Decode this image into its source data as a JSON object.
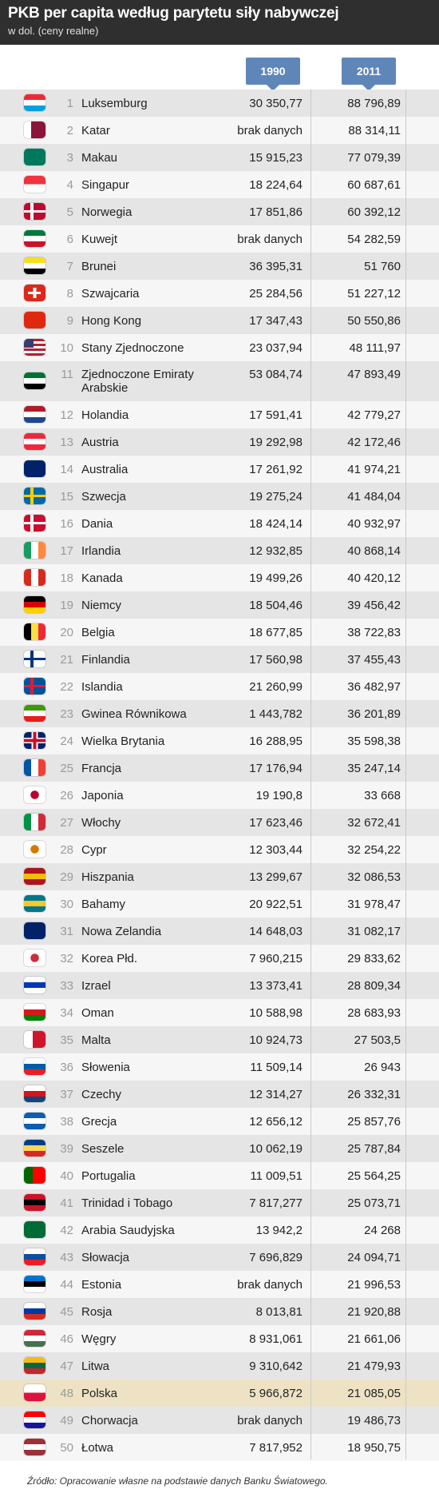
{
  "header": {
    "title": "PKB per capita według parytetu siły nabywczej",
    "subtitle": "w dol. (ceny realne)"
  },
  "columns": {
    "y1990": "1990",
    "y2011": "2011"
  },
  "rows": [
    {
      "rank": "1",
      "country": "Luksemburg",
      "v1990": "30 350,77",
      "v2011": "88 796,89",
      "flag": [
        "#ed2939",
        "#ffffff",
        "#00a1de"
      ],
      "dir": "h"
    },
    {
      "rank": "2",
      "country": "Katar",
      "v1990": "brak danych",
      "v2011": "88 314,11",
      "flag": [
        "#ffffff",
        "#8a1538",
        "#8a1538"
      ],
      "dir": "v"
    },
    {
      "rank": "3",
      "country": "Makau",
      "v1990": "15 915,23",
      "v2011": "77 079,39",
      "flag": [
        "#00785e",
        "#00785e",
        "#00785e"
      ],
      "dir": "h"
    },
    {
      "rank": "4",
      "country": "Singapur",
      "v1990": "18 224,64",
      "v2011": "60 687,61",
      "flag": [
        "#ef3340",
        "#ffffff",
        "#ffffff"
      ],
      "dir": "h2"
    },
    {
      "rank": "5",
      "country": "Norwegia",
      "v1990": "17 851,86",
      "v2011": "60 392,12",
      "flag": [
        "#ba0c2f",
        "#ffffff",
        "#00205b"
      ],
      "dir": "cross"
    },
    {
      "rank": "6",
      "country": "Kuwejt",
      "v1990": "brak danych",
      "v2011": "54 282,59",
      "flag": [
        "#007a3d",
        "#ffffff",
        "#ce1126"
      ],
      "dir": "h"
    },
    {
      "rank": "7",
      "country": "Brunei",
      "v1990": "36 395,31",
      "v2011": "51 760",
      "flag": [
        "#f7e017",
        "#ffffff",
        "#000000"
      ],
      "dir": "h"
    },
    {
      "rank": "8",
      "country": "Szwajcaria",
      "v1990": "25 284,56",
      "v2011": "51 227,12",
      "flag": [
        "#da291c",
        "#da291c",
        "#ffffff"
      ],
      "dir": "swiss"
    },
    {
      "rank": "9",
      "country": "Hong Kong",
      "v1990": "17 347,43",
      "v2011": "50 550,86",
      "flag": [
        "#de2910",
        "#de2910",
        "#de2910"
      ],
      "dir": "h"
    },
    {
      "rank": "10",
      "country": "Stany Zjednoczone",
      "v1990": "23 037,94",
      "v2011": "48 111,97",
      "flag": [
        "#b22234",
        "#ffffff",
        "#3c3b6e"
      ],
      "dir": "us"
    },
    {
      "rank": "11",
      "country": "Zjednoczone Emiraty Arabskie",
      "v1990": "53 084,74",
      "v2011": "47 893,49",
      "flag": [
        "#00732f",
        "#ffffff",
        "#000000"
      ],
      "dir": "h",
      "tall": true
    },
    {
      "rank": "12",
      "country": "Holandia",
      "v1990": "17 591,41",
      "v2011": "42 779,27",
      "flag": [
        "#ae1c28",
        "#ffffff",
        "#21468b"
      ],
      "dir": "h"
    },
    {
      "rank": "13",
      "country": "Austria",
      "v1990": "19 292,98",
      "v2011": "42 172,46",
      "flag": [
        "#ed2939",
        "#ffffff",
        "#ed2939"
      ],
      "dir": "h"
    },
    {
      "rank": "14",
      "country": "Australia",
      "v1990": "17 261,92",
      "v2011": "41 974,21",
      "flag": [
        "#012169",
        "#012169",
        "#012169"
      ],
      "dir": "h"
    },
    {
      "rank": "15",
      "country": "Szwecja",
      "v1990": "19 275,24",
      "v2011": "41 484,04",
      "flag": [
        "#006aa7",
        "#fecc00",
        "#006aa7"
      ],
      "dir": "cross"
    },
    {
      "rank": "16",
      "country": "Dania",
      "v1990": "18 424,14",
      "v2011": "40 932,97",
      "flag": [
        "#c8102e",
        "#ffffff",
        "#c8102e"
      ],
      "dir": "cross"
    },
    {
      "rank": "17",
      "country": "Irlandia",
      "v1990": "12 932,85",
      "v2011": "40 868,14",
      "flag": [
        "#169b62",
        "#ffffff",
        "#ff883e"
      ],
      "dir": "v"
    },
    {
      "rank": "18",
      "country": "Kanada",
      "v1990": "19 499,26",
      "v2011": "40 420,12",
      "flag": [
        "#d52b1e",
        "#ffffff",
        "#d52b1e"
      ],
      "dir": "v"
    },
    {
      "rank": "19",
      "country": "Niemcy",
      "v1990": "18 504,46",
      "v2011": "39 456,42",
      "flag": [
        "#000000",
        "#dd0000",
        "#ffce00"
      ],
      "dir": "h"
    },
    {
      "rank": "20",
      "country": "Belgia",
      "v1990": "18 677,85",
      "v2011": "38 722,83",
      "flag": [
        "#000000",
        "#fae042",
        "#ed2939"
      ],
      "dir": "v"
    },
    {
      "rank": "21",
      "country": "Finlandia",
      "v1990": "17 560,98",
      "v2011": "37 455,43",
      "flag": [
        "#ffffff",
        "#003580",
        "#ffffff"
      ],
      "dir": "cross"
    },
    {
      "rank": "22",
      "country": "Islandia",
      "v1990": "21 260,99",
      "v2011": "36 482,97",
      "flag": [
        "#02529c",
        "#dc1e35",
        "#02529c"
      ],
      "dir": "cross"
    },
    {
      "rank": "23",
      "country": "Gwinea Równikowa",
      "v1990": "1 443,782",
      "v2011": "36 201,89",
      "flag": [
        "#3e9a00",
        "#ffffff",
        "#e32118"
      ],
      "dir": "h"
    },
    {
      "rank": "24",
      "country": "Wielka Brytania",
      "v1990": "16 288,95",
      "v2011": "35 598,38",
      "flag": [
        "#012169",
        "#c8102e",
        "#ffffff"
      ],
      "dir": "uk"
    },
    {
      "rank": "25",
      "country": "Francja",
      "v1990": "17 176,94",
      "v2011": "35 247,14",
      "flag": [
        "#0055a4",
        "#ffffff",
        "#ef4135"
      ],
      "dir": "v"
    },
    {
      "rank": "26",
      "country": "Japonia",
      "v1990": "19 190,8",
      "v2011": "33 668",
      "flag": [
        "#ffffff",
        "#bc002d",
        "#ffffff"
      ],
      "dir": "jp"
    },
    {
      "rank": "27",
      "country": "Włochy",
      "v1990": "17 623,46",
      "v2011": "32 672,41",
      "flag": [
        "#009246",
        "#ffffff",
        "#ce2b37"
      ],
      "dir": "v"
    },
    {
      "rank": "28",
      "country": "Cypr",
      "v1990": "12 303,44",
      "v2011": "32 254,22",
      "flag": [
        "#ffffff",
        "#d57800",
        "#ffffff"
      ],
      "dir": "jp"
    },
    {
      "rank": "29",
      "country": "Hiszpania",
      "v1990": "13 299,67",
      "v2011": "32 086,53",
      "flag": [
        "#aa151b",
        "#f1bf00",
        "#aa151b"
      ],
      "dir": "h"
    },
    {
      "rank": "30",
      "country": "Bahamy",
      "v1990": "20 922,51",
      "v2011": "31 978,47",
      "flag": [
        "#00778b",
        "#ffc72c",
        "#00778b"
      ],
      "dir": "h"
    },
    {
      "rank": "31",
      "country": "Nowa Zelandia",
      "v1990": "14 648,03",
      "v2011": "31 082,17",
      "flag": [
        "#012169",
        "#012169",
        "#012169"
      ],
      "dir": "h"
    },
    {
      "rank": "32",
      "country": "Korea Płd.",
      "v1990": "7 960,215",
      "v2011": "29 833,62",
      "flag": [
        "#ffffff",
        "#cd2e3a",
        "#ffffff"
      ],
      "dir": "jp"
    },
    {
      "rank": "33",
      "country": "Izrael",
      "v1990": "13 373,41",
      "v2011": "28 809,34",
      "flag": [
        "#ffffff",
        "#0038b8",
        "#ffffff"
      ],
      "dir": "h"
    },
    {
      "rank": "34",
      "country": "Oman",
      "v1990": "10 588,98",
      "v2011": "28 683,93",
      "flag": [
        "#ffffff",
        "#db161b",
        "#008000"
      ],
      "dir": "h"
    },
    {
      "rank": "35",
      "country": "Malta",
      "v1990": "10 924,73",
      "v2011": "27 503,5",
      "flag": [
        "#ffffff",
        "#cf142b",
        "#cf142b"
      ],
      "dir": "v2"
    },
    {
      "rank": "36",
      "country": "Słowenia",
      "v1990": "11 509,14",
      "v2011": "26 943",
      "flag": [
        "#ffffff",
        "#005da4",
        "#ed1c24"
      ],
      "dir": "h"
    },
    {
      "rank": "37",
      "country": "Czechy",
      "v1990": "12 314,27",
      "v2011": "26 332,31",
      "flag": [
        "#ffffff",
        "#d7141a",
        "#11457e"
      ],
      "dir": "h"
    },
    {
      "rank": "38",
      "country": "Grecja",
      "v1990": "12 656,12",
      "v2011": "25 857,76",
      "flag": [
        "#0d5eaf",
        "#ffffff",
        "#0d5eaf"
      ],
      "dir": "h"
    },
    {
      "rank": "39",
      "country": "Seszele",
      "v1990": "10 062,19",
      "v2011": "25 787,84",
      "flag": [
        "#003f87",
        "#fcd856",
        "#d62828"
      ],
      "dir": "h"
    },
    {
      "rank": "40",
      "country": "Portugalia",
      "v1990": "11 009,51",
      "v2011": "25 564,25",
      "flag": [
        "#006600",
        "#ff0000",
        "#ff0000"
      ],
      "dir": "v2"
    },
    {
      "rank": "41",
      "country": "Trinidad i Tobago",
      "v1990": "7 817,277",
      "v2011": "25 073,71",
      "flag": [
        "#ce1126",
        "#000000",
        "#ce1126"
      ],
      "dir": "h"
    },
    {
      "rank": "42",
      "country": "Arabia Saudyjska",
      "v1990": "13 942,2",
      "v2011": "24 268",
      "flag": [
        "#006c35",
        "#006c35",
        "#006c35"
      ],
      "dir": "h"
    },
    {
      "rank": "43",
      "country": "Słowacja",
      "v1990": "7 696,829",
      "v2011": "24 094,71",
      "flag": [
        "#ffffff",
        "#0b4ea2",
        "#ee1c25"
      ],
      "dir": "h"
    },
    {
      "rank": "44",
      "country": "Estonia",
      "v1990": "brak danych",
      "v2011": "21 996,53",
      "flag": [
        "#0072ce",
        "#000000",
        "#ffffff"
      ],
      "dir": "h"
    },
    {
      "rank": "45",
      "country": "Rosja",
      "v1990": "8 013,81",
      "v2011": "21 920,88",
      "flag": [
        "#ffffff",
        "#0039a6",
        "#d52b1e"
      ],
      "dir": "h"
    },
    {
      "rank": "46",
      "country": "Węgry",
      "v1990": "8 931,061",
      "v2011": "21 661,06",
      "flag": [
        "#ce2939",
        "#ffffff",
        "#477050"
      ],
      "dir": "h"
    },
    {
      "rank": "47",
      "country": "Litwa",
      "v1990": "9 310,642",
      "v2011": "21 479,93",
      "flag": [
        "#fdb913",
        "#006a44",
        "#c1272d"
      ],
      "dir": "h"
    },
    {
      "rank": "48",
      "country": "Polska",
      "v1990": "5 966,872",
      "v2011": "21 085,05",
      "flag": [
        "#ffffff",
        "#dc143c",
        "#dc143c"
      ],
      "dir": "h2",
      "highlight": true
    },
    {
      "rank": "49",
      "country": "Chorwacja",
      "v1990": "brak danych",
      "v2011": "19 486,73",
      "flag": [
        "#ff0000",
        "#ffffff",
        "#171796"
      ],
      "dir": "h"
    },
    {
      "rank": "50",
      "country": "Łotwa",
      "v1990": "7 817,952",
      "v2011": "18 950,75",
      "flag": [
        "#9e3039",
        "#ffffff",
        "#9e3039"
      ],
      "dir": "h"
    }
  ],
  "footer": {
    "source": "Źródło: Opracowanie własne na podstawie danych Banku Światowego."
  }
}
